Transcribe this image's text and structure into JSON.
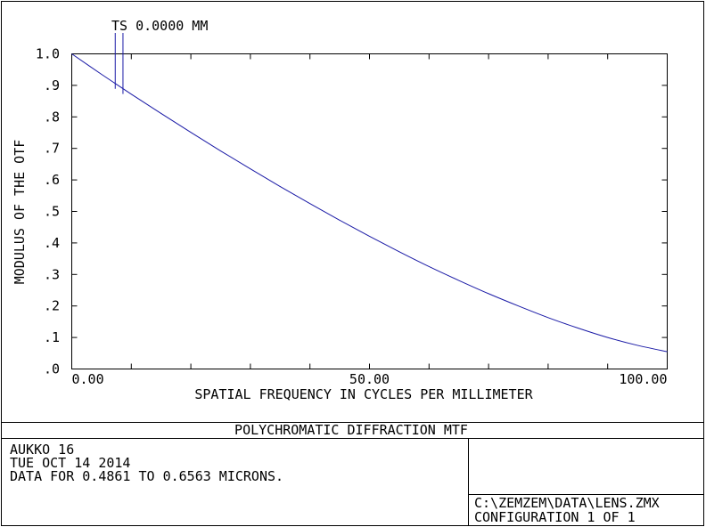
{
  "chart_data": {
    "type": "line",
    "title": "POLYCHROMATIC DIFFRACTION MTF",
    "xlabel": "SPATIAL FREQUENCY IN CYCLES PER MILLIMETER",
    "ylabel": "MODULUS OF THE OTF",
    "xlim": [
      0,
      100
    ],
    "ylim": [
      0,
      1.0
    ],
    "x_tick_labels": [
      "0.00",
      "50.00",
      "100.00"
    ],
    "x_tick_values": [
      0,
      50,
      100
    ],
    "y_tick_labels": [
      ".0",
      ".1",
      ".2",
      ".3",
      ".4",
      ".5",
      ".6",
      ".7",
      ".8",
      ".9",
      "1.0"
    ],
    "y_tick_values": [
      0,
      0.1,
      0.2,
      0.3,
      0.4,
      0.5,
      0.6,
      0.7,
      0.8,
      0.9,
      1.0
    ],
    "grid": false,
    "series": [
      {
        "name": "TS 0.0000 MM",
        "color": "#1a1aa6",
        "x": [
          0,
          5,
          10,
          15,
          20,
          25,
          30,
          35,
          40,
          45,
          50,
          55,
          60,
          65,
          70,
          75,
          80,
          85,
          90,
          95,
          100
        ],
        "y": [
          1.0,
          0.935,
          0.872,
          0.811,
          0.751,
          0.692,
          0.635,
          0.579,
          0.525,
          0.472,
          0.421,
          0.372,
          0.325,
          0.281,
          0.239,
          0.2,
          0.163,
          0.13,
          0.1,
          0.075,
          0.055
        ]
      }
    ],
    "label_marker": {
      "text": "TS 0.0000 MM",
      "x": [
        7.3,
        8.6
      ]
    }
  },
  "info": {
    "title": "POLYCHROMATIC DIFFRACTION MTF",
    "left_lines": [
      "AUKKO 16",
      "TUE OCT 14 2014",
      "DATA FOR 0.4861 TO 0.6563 MICRONS."
    ],
    "right_lines": [
      "C:\\ZEMZEM\\DATA\\LENS.ZMX",
      "CONFIGURATION 1 OF 1"
    ]
  },
  "colors": {
    "curve": "#1a1aa6",
    "frame": "#000000",
    "background": "#ffffff"
  }
}
